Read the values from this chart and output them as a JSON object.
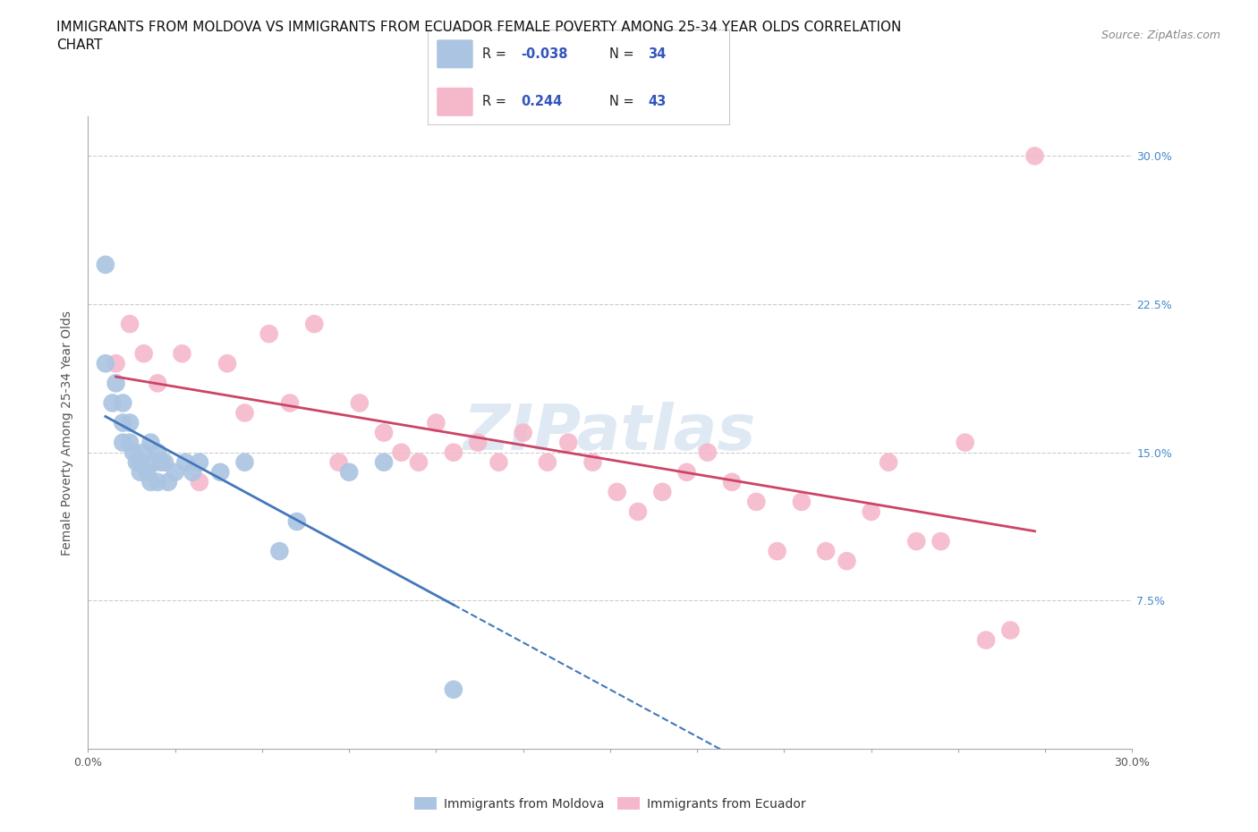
{
  "title": "IMMIGRANTS FROM MOLDOVA VS IMMIGRANTS FROM ECUADOR FEMALE POVERTY AMONG 25-34 YEAR OLDS CORRELATION\nCHART",
  "source": "Source: ZipAtlas.com",
  "ylabel": "Female Poverty Among 25-34 Year Olds",
  "xlim": [
    0.0,
    0.3
  ],
  "ylim": [
    0.0,
    0.32
  ],
  "yticks": [
    0.075,
    0.15,
    0.225,
    0.3
  ],
  "ytick_labels": [
    "7.5%",
    "15.0%",
    "22.5%",
    "30.0%"
  ],
  "xticks": [
    0.0,
    0.025,
    0.05,
    0.075,
    0.1,
    0.125,
    0.15,
    0.175,
    0.2,
    0.225,
    0.25,
    0.275,
    0.3
  ],
  "xtick_labels_show": [
    "0.0%",
    "",
    "",
    "",
    "",
    "",
    "",
    "",
    "",
    "",
    "",
    "",
    "30.0%"
  ],
  "background_color": "#ffffff",
  "moldova_color": "#aac4e2",
  "ecuador_color": "#f5b8cb",
  "moldova_R": -0.038,
  "moldova_N": 34,
  "ecuador_R": 0.244,
  "ecuador_N": 43,
  "moldova_line_color": "#4477bb",
  "ecuador_line_color": "#cc4466",
  "watermark": "ZIPatlas",
  "moldova_x": [
    0.005,
    0.005,
    0.007,
    0.008,
    0.01,
    0.01,
    0.01,
    0.012,
    0.012,
    0.013,
    0.014,
    0.015,
    0.015,
    0.016,
    0.017,
    0.018,
    0.018,
    0.019,
    0.02,
    0.02,
    0.021,
    0.022,
    0.023,
    0.025,
    0.028,
    0.03,
    0.032,
    0.038,
    0.045,
    0.055,
    0.06,
    0.075,
    0.105,
    0.085
  ],
  "moldova_y": [
    0.245,
    0.195,
    0.175,
    0.185,
    0.175,
    0.165,
    0.155,
    0.155,
    0.165,
    0.15,
    0.145,
    0.145,
    0.14,
    0.15,
    0.14,
    0.155,
    0.135,
    0.145,
    0.15,
    0.135,
    0.145,
    0.145,
    0.135,
    0.14,
    0.145,
    0.14,
    0.145,
    0.14,
    0.145,
    0.1,
    0.115,
    0.14,
    0.03,
    0.145
  ],
  "ecuador_x": [
    0.008,
    0.012,
    0.016,
    0.02,
    0.027,
    0.032,
    0.04,
    0.045,
    0.052,
    0.058,
    0.065,
    0.072,
    0.078,
    0.085,
    0.09,
    0.095,
    0.1,
    0.105,
    0.112,
    0.118,
    0.125,
    0.132,
    0.138,
    0.145,
    0.152,
    0.158,
    0.165,
    0.172,
    0.178,
    0.185,
    0.192,
    0.198,
    0.205,
    0.212,
    0.218,
    0.225,
    0.23,
    0.238,
    0.245,
    0.252,
    0.258,
    0.265,
    0.272
  ],
  "ecuador_y": [
    0.195,
    0.215,
    0.2,
    0.185,
    0.2,
    0.135,
    0.195,
    0.17,
    0.21,
    0.175,
    0.215,
    0.145,
    0.175,
    0.16,
    0.15,
    0.145,
    0.165,
    0.15,
    0.155,
    0.145,
    0.16,
    0.145,
    0.155,
    0.145,
    0.13,
    0.12,
    0.13,
    0.14,
    0.15,
    0.135,
    0.125,
    0.1,
    0.125,
    0.1,
    0.095,
    0.12,
    0.145,
    0.105,
    0.105,
    0.155,
    0.055,
    0.06,
    0.3
  ]
}
